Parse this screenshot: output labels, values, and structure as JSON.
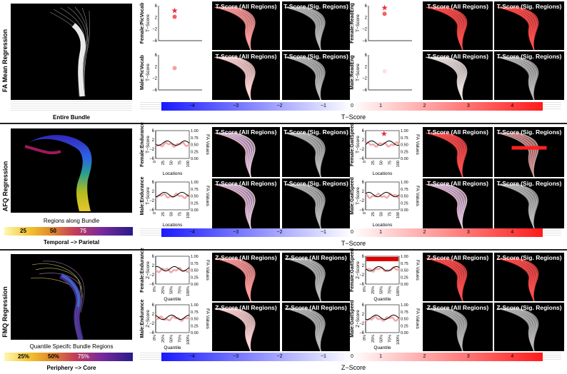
{
  "rows": [
    {
      "label": "FA Mean Regression",
      "bundle_caption": "Entire Bundle",
      "colorbar_title": "T−Score",
      "colorbar_ticks": [
        "−4",
        "−3",
        "−2",
        "−1",
        "0",
        "1",
        "2",
        "3",
        "4"
      ],
      "tiles_top": [
        "T-Score (All Regions)",
        "T-Score (Sig. Regions)",
        "T-Score (All Regions)",
        "T-Score (Sig. Regions)"
      ],
      "tiles_bottom": [
        "T-Score (All Regions)",
        "T-Score (Sig. Regions)",
        "T-Score (All Regions)",
        "T-Score (Sig. Regions)"
      ],
      "plots": [
        {
          "ylabel": "Female:PicVocab",
          "yaxis": "T−Score",
          "yticks": [
            "6",
            "4",
            "2",
            "0",
            "−2",
            "−4",
            "−6"
          ],
          "value": 2.2,
          "star": true
        },
        {
          "ylabel": "Male:PicVocab",
          "yaxis": "T−Score",
          "yticks": [
            "6",
            "4",
            "2",
            "0",
            "−2",
            "−4",
            "−6"
          ],
          "value": 1.5,
          "star": false
        },
        {
          "ylabel": "Female:ReadEng",
          "yaxis": "T−Score",
          "yticks": [
            "6",
            "4",
            "2",
            "0",
            "−2",
            "−4",
            "−6"
          ],
          "value": 3.2,
          "star": true
        },
        {
          "ylabel": "Male:ReadEng",
          "yaxis": "T−Score",
          "yticks": [
            "6",
            "4",
            "2",
            "0",
            "−2",
            "−4",
            "−6"
          ],
          "value": 0.4,
          "star": false
        }
      ]
    },
    {
      "label": "AFQ Regression",
      "bundle_caption": "Regions along Bundle",
      "scale_ticks": [
        "25",
        "50",
        "75"
      ],
      "scale_caption": "Temporal −> Parietal",
      "colorbar_title": "T−Score",
      "colorbar_ticks": [
        "−4",
        "−3",
        "−2",
        "−1",
        "0",
        "1",
        "2",
        "3",
        "4"
      ],
      "tiles_top": [
        "T-Score (All Regions)",
        "T-Score (Sig. Regions)",
        "T-Score (All Regions)",
        "T-Score (Sig. Regions)"
      ],
      "tiles_bottom": [
        "T-Score (All Regions)",
        "T-Score (Sig. Regions)",
        "T-Score (All Regions)",
        "T-Score (Sig. Regions)"
      ],
      "plots": [
        {
          "ylabel": "Female:Endurance",
          "yaxis": "T−Score",
          "y2axis": "FA Values",
          "xlabel": "Locations",
          "yticks": [
            "6",
            "4",
            "2",
            "0",
            "−2",
            "−4",
            "−6"
          ],
          "y2ticks": [
            "1.00",
            "0.75",
            "0.50",
            "0.25",
            "0.00"
          ],
          "xticks": [
            "0",
            "25",
            "50",
            "75",
            "100"
          ],
          "star": false
        },
        {
          "ylabel": "Male:Endurance",
          "yaxis": "T−Score",
          "y2axis": "FA Values",
          "xlabel": "Locations",
          "yticks": [
            "6",
            "4",
            "2",
            "0",
            "−2",
            "−4",
            "−6"
          ],
          "y2ticks": [
            "1.00",
            "0.75",
            "0.50",
            "0.25",
            "0.00"
          ],
          "xticks": [
            "0",
            "25",
            "50",
            "75",
            "100"
          ],
          "star": false
        },
        {
          "ylabel": "Female:GaitSpeed",
          "yaxis": "T−Score",
          "y2axis": "FA Values",
          "xlabel": "Locations",
          "yticks": [
            "6",
            "4",
            "2",
            "0",
            "−2",
            "−4",
            "−6"
          ],
          "y2ticks": [
            "1.00",
            "0.75",
            "0.50",
            "0.25",
            "0.00"
          ],
          "xticks": [
            "0",
            "25",
            "50",
            "75",
            "100"
          ],
          "star": true
        },
        {
          "ylabel": "Male:GaitSpeed",
          "yaxis": "T−Score",
          "y2axis": "FA Values",
          "xlabel": "Locations",
          "yticks": [
            "6",
            "4",
            "2",
            "0",
            "−2",
            "−4",
            "−6"
          ],
          "y2ticks": [
            "1.00",
            "0.75",
            "0.50",
            "0.25",
            "0.00"
          ],
          "xticks": [
            "0",
            "25",
            "50",
            "75",
            "100"
          ],
          "star": false
        }
      ]
    },
    {
      "label": "FMQ Regression",
      "bundle_caption": "Quantile Specifc Bundle Regions",
      "scale_ticks": [
        "25%",
        "50%",
        "75%"
      ],
      "scale_caption": "Periphery −> Core",
      "colorbar_title": "Z−Score",
      "colorbar_ticks": [
        "−4",
        "−3",
        "−2",
        "−1",
        "0",
        "1",
        "2",
        "3",
        "4"
      ],
      "tiles_top": [
        "Z-Score (All Regions)",
        "Z-Score (All Regions)",
        "Z-Score (All Regions)",
        "Z-Score (Sig. Regions)"
      ],
      "tiles_bottom": [
        "Z-Score (All Regions)",
        "Z-Score (All Regions)",
        "Z-Score (All Regions)",
        "Z-Score (Sig. Regions)"
      ],
      "plots": [
        {
          "ylabel": "Female:Endurance",
          "yaxis": "Z−Score",
          "y2axis": "FA Values",
          "xlabel": "Quantile",
          "yticks": [
            "6",
            "4",
            "2",
            "0",
            "−2",
            "−4",
            "−6"
          ],
          "y2ticks": [
            "1.00",
            "0.75",
            "0.50",
            "0.25",
            "0.00"
          ],
          "xticks": [
            "0%",
            "25%",
            "50%",
            "75%",
            "100%"
          ],
          "star": false
        },
        {
          "ylabel": "Male:Endurance",
          "yaxis": "Z−Score",
          "y2axis": "FA Values",
          "xlabel": "Quantile",
          "yticks": [
            "6",
            "4",
            "2",
            "0",
            "−2",
            "−4",
            "−6"
          ],
          "y2ticks": [
            "1.00",
            "0.75",
            "0.50",
            "0.25",
            "0.00"
          ],
          "xticks": [
            "0%",
            "25%",
            "50%",
            "75%",
            "100%"
          ],
          "star": false
        },
        {
          "ylabel": "Female:GaitSpeed",
          "yaxis": "Z−Score",
          "y2axis": "FA Values",
          "xlabel": "Quantile",
          "yticks": [
            "6",
            "4",
            "2",
            "0",
            "−2",
            "−4",
            "−6"
          ],
          "y2ticks": [
            "1.00",
            "0.75",
            "0.50",
            "0.25",
            "0.00"
          ],
          "xticks": [
            "0%",
            "25%",
            "50%",
            "75%",
            "100%"
          ],
          "star": false
        },
        {
          "ylabel": "Male:GaitSpeed",
          "yaxis": "Z−Score",
          "y2axis": "FA Values",
          "xlabel": "Quantile",
          "yticks": [
            "6",
            "4",
            "2",
            "0",
            "−2",
            "−4",
            "−6"
          ],
          "y2ticks": [
            "1.00",
            "0.75",
            "0.50",
            "0.25",
            "0.00"
          ],
          "xticks": [
            "0%",
            "25%",
            "50%",
            "75%",
            "100%"
          ],
          "star": false
        }
      ]
    }
  ],
  "colors": {
    "negative": "#1a1aff",
    "positive": "#ff1a1a",
    "neutral": "#ffffff",
    "star": "#e8283a"
  }
}
